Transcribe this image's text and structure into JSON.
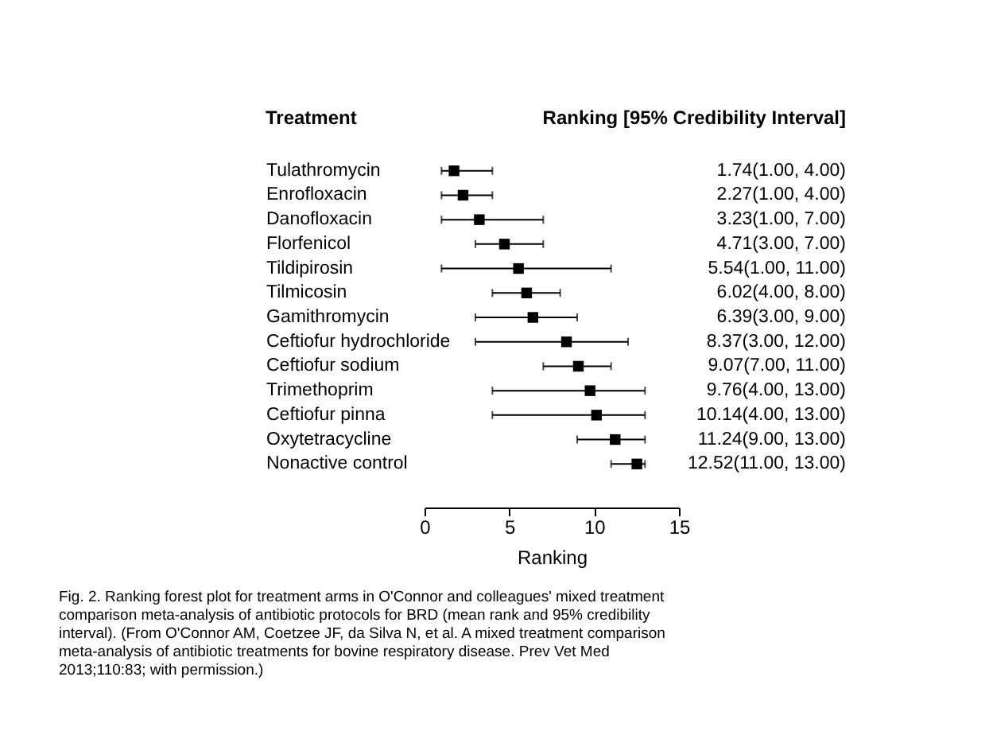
{
  "chart_data": {
    "type": "scatter",
    "orientation": "horizontal",
    "marker": "square",
    "color": "#000000",
    "categories": [
      "Tulathromycin",
      "Enrofloxacin",
      "Danofloxacin",
      "Florfenicol",
      "Tildipirosin",
      "Tilmicosin",
      "Gamithromycin",
      "Ceftiofur hydrochloride",
      "Ceftiofur sodium",
      "Trimethoprim",
      "Ceftiofur pinna",
      "Oxytetracycline",
      "Nonactive control"
    ],
    "values": [
      1.74,
      2.27,
      3.23,
      4.71,
      5.54,
      6.02,
      6.39,
      8.37,
      9.07,
      9.76,
      10.14,
      11.24,
      12.52
    ],
    "errors": [
      [
        1.0,
        4.0
      ],
      [
        1.0,
        4.0
      ],
      [
        1.0,
        7.0
      ],
      [
        3.0,
        7.0
      ],
      [
        1.0,
        11.0
      ],
      [
        4.0,
        8.0
      ],
      [
        3.0,
        9.0
      ],
      [
        3.0,
        12.0
      ],
      [
        7.0,
        11.0
      ],
      [
        4.0,
        13.0
      ],
      [
        4.0,
        13.0
      ],
      [
        9.0,
        13.0
      ],
      [
        11.0,
        13.0
      ]
    ],
    "value_labels": [
      "1.74(1.00, 4.00)",
      "2.27(1.00, 4.00)",
      "3.23(1.00, 7.00)",
      "4.71(3.00, 7.00)",
      "5.54(1.00, 11.00)",
      "6.02(4.00, 8.00)",
      "6.39(3.00, 9.00)",
      "8.37(3.00, 12.00)",
      "9.07(7.00, 11.00)",
      "9.76(4.00, 13.00)",
      "10.14(4.00, 13.00)",
      "11.24(9.00, 13.00)",
      "12.52(11.00, 13.00)"
    ],
    "xlim": [
      0,
      15
    ],
    "xticks": [
      0,
      5,
      10,
      15
    ],
    "xlabel": "Ranking",
    "annotations": [
      "Treatment",
      "Ranking [95% Credibility Interval]",
      "Fig. 2. Ranking forest plot for treatment arms in O'Connor and colleagues' mixed treatment comparison meta-analysis of antibiotic protocols for BRD (mean rank and 95% credibility interval). (From O'Connor AM, Coetzee JF, da Silva N, et al. A mixed treatment comparison meta-analysis of antibiotic treatments for bovine respiratory disease. Prev Vet Med 2013;110:83; with permission.)"
    ]
  }
}
